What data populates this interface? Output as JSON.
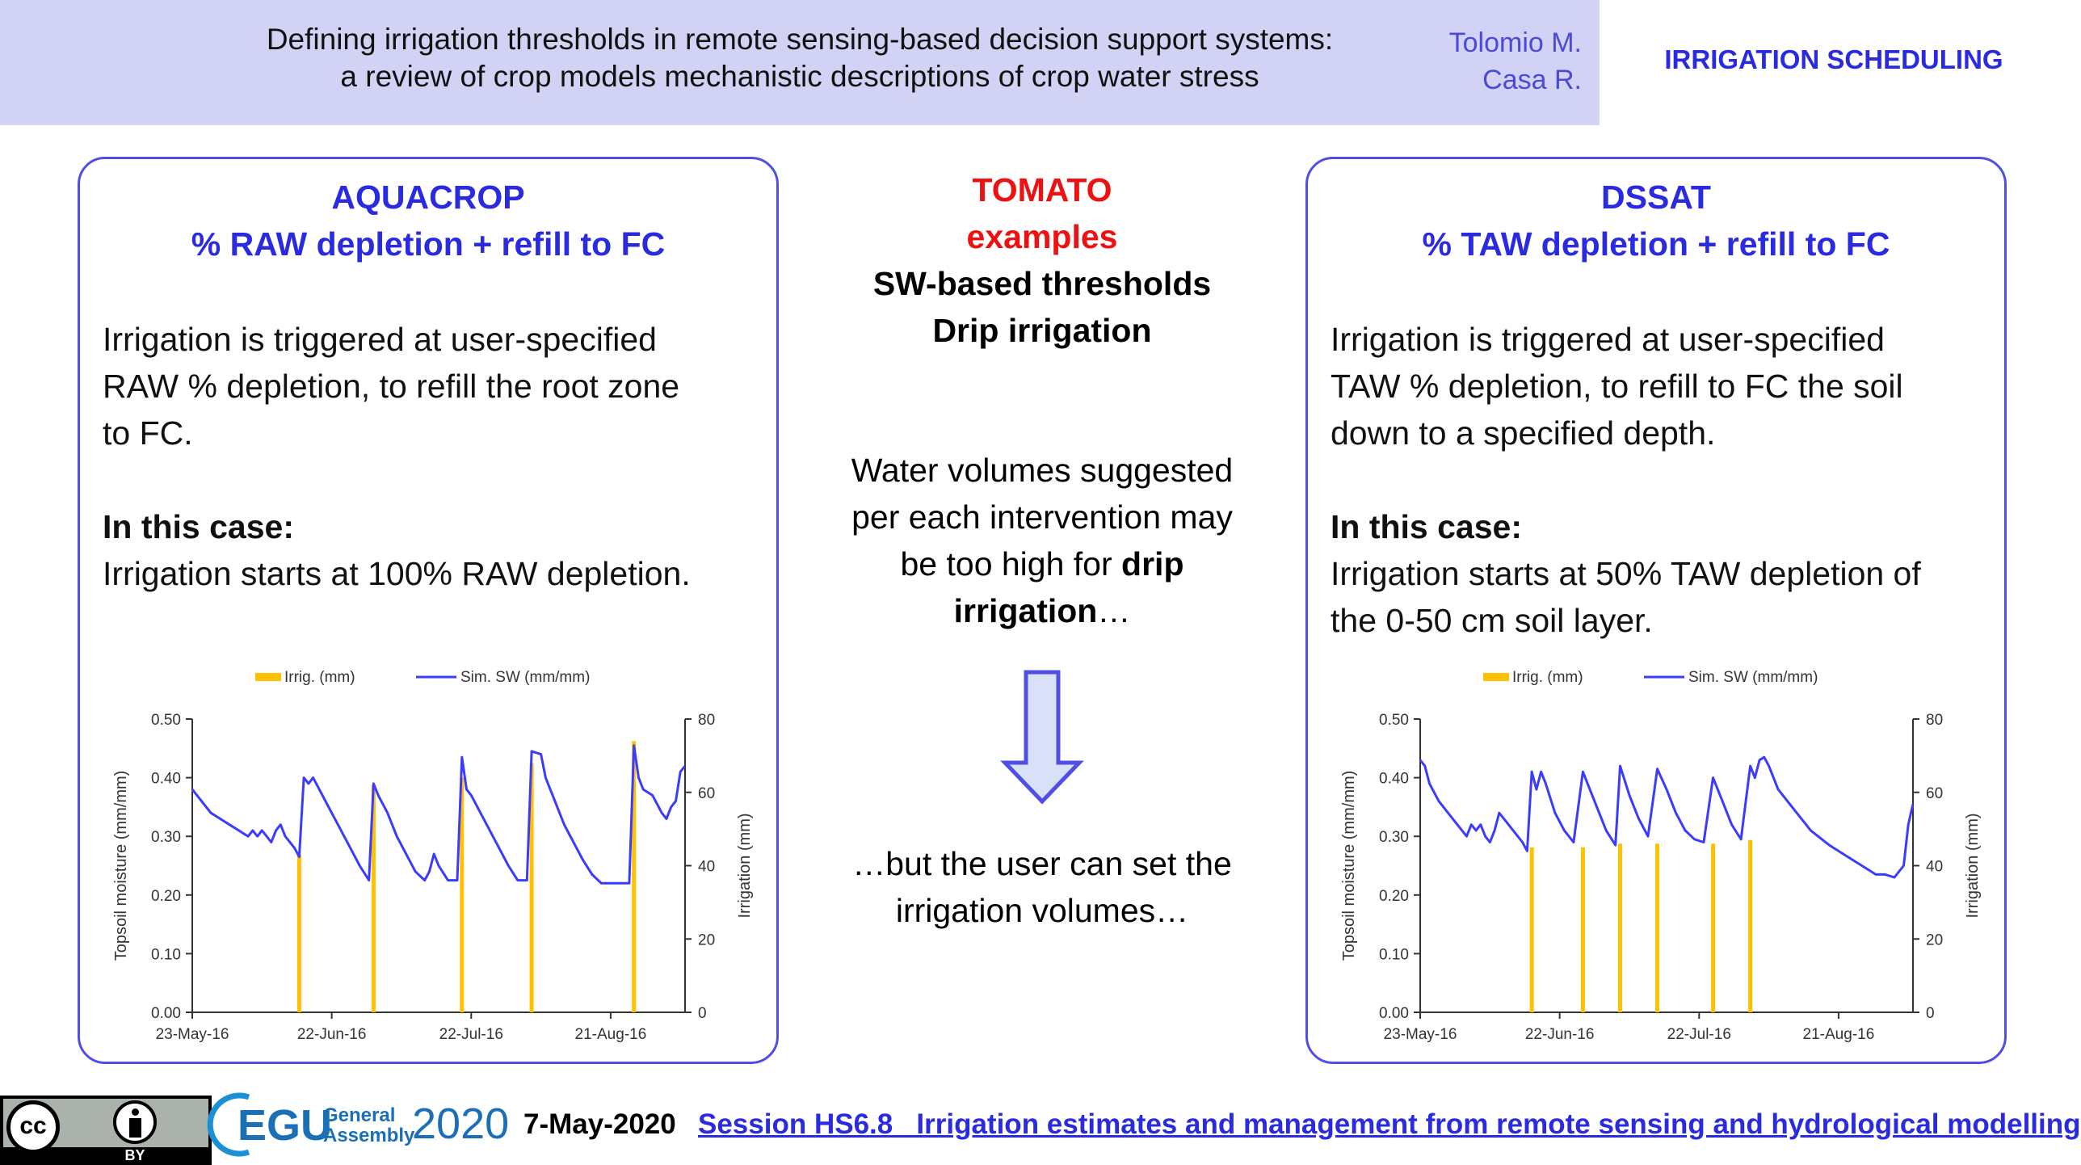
{
  "header": {
    "title_line1": "Defining irrigation thresholds in remote sensing-based decision support systems:",
    "title_line2": "a review of crop models mechanistic descriptions of crop water stress",
    "author1": "Tolomio M.",
    "author2": "Casa R.",
    "topic": "IRRIGATION SCHEDULING"
  },
  "left_panel": {
    "model": "AQUACROP",
    "method": "% RAW depletion + refill to FC",
    "desc_lines": [
      "Irrigation is triggered at user-specified",
      "RAW % depletion, to refill the root zone",
      "to FC."
    ],
    "case_heading": "In this case:",
    "case_lines": [
      "Irrigation starts at 100% RAW depletion."
    ]
  },
  "center": {
    "crop": "TOMATO",
    "examples": "examples",
    "line1": "SW-based thresholds",
    "line2": "Drip irrigation",
    "para1_a": "Water volumes suggested",
    "para1_b": "per each intervention may",
    "para1_c": "be too high for",
    "para1_c_bold": "drip",
    "para1_d_bold": "irrigation",
    "para1_d": "…",
    "para2_a": "…but the user can set the",
    "para2_b": "irrigation volumes…"
  },
  "right_panel": {
    "model": "DSSAT",
    "method": "% TAW depletion + refill to FC",
    "desc_lines": [
      "Irrigation is triggered at user-specified",
      "TAW % depletion, to refill to FC the soil",
      "down to a specified depth."
    ],
    "case_heading": "In this case:",
    "case_lines": [
      "Irrigation starts at 50% TAW depletion of",
      "the 0-50 cm soil layer."
    ]
  },
  "chart_data": [
    {
      "type": "bar+line",
      "legend": [
        "Irrig. (mm)",
        "Sim. SW (mm/mm)"
      ],
      "ylabel": "Topsoil moisture (mm/mm)",
      "y2label": "Irrigation (mm)",
      "ylim": [
        0,
        0.5
      ],
      "y2lim": [
        0,
        80
      ],
      "yticks": [
        "0.00",
        "0.10",
        "0.20",
        "0.30",
        "0.40",
        "0.50"
      ],
      "y2ticks": [
        "0",
        "20",
        "40",
        "60",
        "80"
      ],
      "xticks": [
        "23-May-16",
        "22-Jun-16",
        "22-Jul-16",
        "21-Aug-16"
      ],
      "xlim_days": [
        0,
        106
      ],
      "colors": {
        "irrig": "#ffc000",
        "sw": "#3b3bff"
      },
      "irrigation": [
        [
          23,
          43
        ],
        [
          39,
          62
        ],
        [
          58,
          64
        ],
        [
          73,
          68
        ],
        [
          95,
          74
        ]
      ],
      "sw": [
        [
          0,
          0.38
        ],
        [
          2,
          0.36
        ],
        [
          4,
          0.34
        ],
        [
          6,
          0.33
        ],
        [
          8,
          0.32
        ],
        [
          10,
          0.31
        ],
        [
          11,
          0.305
        ],
        [
          12,
          0.3
        ],
        [
          13,
          0.31
        ],
        [
          14,
          0.3
        ],
        [
          15,
          0.31
        ],
        [
          16,
          0.3
        ],
        [
          17,
          0.29
        ],
        [
          18,
          0.31
        ],
        [
          19,
          0.32
        ],
        [
          20,
          0.3
        ],
        [
          22,
          0.28
        ],
        [
          23,
          0.265
        ],
        [
          24,
          0.4
        ],
        [
          25,
          0.39
        ],
        [
          26,
          0.4
        ],
        [
          28,
          0.37
        ],
        [
          30,
          0.34
        ],
        [
          32,
          0.31
        ],
        [
          34,
          0.28
        ],
        [
          36,
          0.25
        ],
        [
          38,
          0.225
        ],
        [
          39,
          0.39
        ],
        [
          40,
          0.37
        ],
        [
          42,
          0.34
        ],
        [
          44,
          0.3
        ],
        [
          46,
          0.27
        ],
        [
          48,
          0.24
        ],
        [
          50,
          0.225
        ],
        [
          51,
          0.24
        ],
        [
          52,
          0.27
        ],
        [
          53,
          0.25
        ],
        [
          55,
          0.225
        ],
        [
          57,
          0.225
        ],
        [
          58,
          0.435
        ],
        [
          59,
          0.38
        ],
        [
          60,
          0.37
        ],
        [
          62,
          0.34
        ],
        [
          64,
          0.31
        ],
        [
          66,
          0.28
        ],
        [
          68,
          0.25
        ],
        [
          70,
          0.225
        ],
        [
          72,
          0.225
        ],
        [
          73,
          0.445
        ],
        [
          75,
          0.44
        ],
        [
          76,
          0.4
        ],
        [
          78,
          0.36
        ],
        [
          80,
          0.32
        ],
        [
          82,
          0.29
        ],
        [
          84,
          0.26
        ],
        [
          86,
          0.235
        ],
        [
          88,
          0.22
        ],
        [
          92,
          0.22
        ],
        [
          94,
          0.22
        ],
        [
          95,
          0.455
        ],
        [
          96,
          0.4
        ],
        [
          97,
          0.38
        ],
        [
          99,
          0.37
        ],
        [
          101,
          0.34
        ],
        [
          102,
          0.33
        ],
        [
          103,
          0.35
        ],
        [
          104,
          0.36
        ],
        [
          105,
          0.41
        ],
        [
          106,
          0.42
        ]
      ]
    },
    {
      "type": "bar+line",
      "legend": [
        "Irrig. (mm)",
        "Sim. SW (mm/mm)"
      ],
      "ylabel": "Topsoil moisture (mm/mm)",
      "y2label": "Irrigation (mm)",
      "ylim": [
        0,
        0.5
      ],
      "y2lim": [
        0,
        80
      ],
      "yticks": [
        "0.00",
        "0.10",
        "0.20",
        "0.30",
        "0.40",
        "0.50"
      ],
      "y2ticks": [
        "0",
        "20",
        "40",
        "60",
        "80"
      ],
      "xticks": [
        "23-May-16",
        "22-Jun-16",
        "22-Jul-16",
        "21-Aug-16"
      ],
      "xlim_days": [
        0,
        106
      ],
      "colors": {
        "irrig": "#ffc000",
        "sw": "#3b3bff"
      },
      "irrigation": [
        [
          24,
          45
        ],
        [
          35,
          45
        ],
        [
          43,
          46
        ],
        [
          51,
          46
        ],
        [
          63,
          46
        ],
        [
          71,
          47
        ]
      ],
      "sw": [
        [
          0,
          0.43
        ],
        [
          1,
          0.42
        ],
        [
          2,
          0.39
        ],
        [
          4,
          0.36
        ],
        [
          6,
          0.34
        ],
        [
          8,
          0.32
        ],
        [
          10,
          0.3
        ],
        [
          11,
          0.32
        ],
        [
          12,
          0.31
        ],
        [
          13,
          0.32
        ],
        [
          14,
          0.3
        ],
        [
          15,
          0.29
        ],
        [
          16,
          0.31
        ],
        [
          17,
          0.34
        ],
        [
          18,
          0.33
        ],
        [
          20,
          0.31
        ],
        [
          22,
          0.29
        ],
        [
          23,
          0.275
        ],
        [
          24,
          0.41
        ],
        [
          25,
          0.38
        ],
        [
          26,
          0.41
        ],
        [
          27,
          0.39
        ],
        [
          29,
          0.34
        ],
        [
          31,
          0.31
        ],
        [
          33,
          0.29
        ],
        [
          35,
          0.41
        ],
        [
          36,
          0.39
        ],
        [
          38,
          0.35
        ],
        [
          40,
          0.31
        ],
        [
          42,
          0.285
        ],
        [
          43,
          0.42
        ],
        [
          45,
          0.37
        ],
        [
          47,
          0.33
        ],
        [
          49,
          0.3
        ],
        [
          51,
          0.415
        ],
        [
          53,
          0.38
        ],
        [
          55,
          0.34
        ],
        [
          57,
          0.31
        ],
        [
          59,
          0.295
        ],
        [
          61,
          0.29
        ],
        [
          63,
          0.4
        ],
        [
          65,
          0.36
        ],
        [
          67,
          0.32
        ],
        [
          69,
          0.295
        ],
        [
          71,
          0.42
        ],
        [
          72,
          0.4
        ],
        [
          73,
          0.43
        ],
        [
          74,
          0.435
        ],
        [
          75,
          0.42
        ],
        [
          77,
          0.38
        ],
        [
          80,
          0.35
        ],
        [
          84,
          0.31
        ],
        [
          88,
          0.285
        ],
        [
          92,
          0.265
        ],
        [
          96,
          0.245
        ],
        [
          98,
          0.235
        ],
        [
          100,
          0.235
        ],
        [
          102,
          0.23
        ],
        [
          104,
          0.25
        ],
        [
          105,
          0.32
        ],
        [
          106,
          0.355
        ]
      ]
    }
  ],
  "footer": {
    "cc": "cc",
    "by": "BY",
    "egu": "EGU",
    "general": "General",
    "assembly": "Assembly",
    "year": "2020",
    "date": "7-May-2020",
    "session": "Session HS6.8   Irrigation estimates and management from remote sensing and hydrological modelling"
  }
}
